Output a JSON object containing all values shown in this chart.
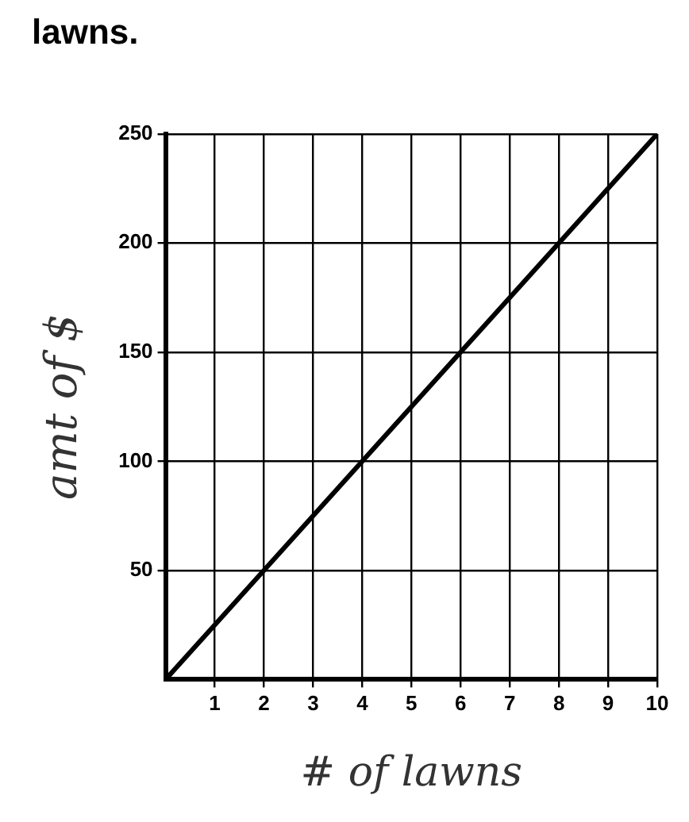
{
  "chart_data": {
    "type": "line",
    "title": "lawns.",
    "xlabel": "# of lawns",
    "ylabel": "amt of $",
    "series": [
      {
        "color": "#000000",
        "x": [
          0,
          10
        ],
        "values": [
          0,
          250
        ]
      }
    ],
    "xlim": [
      0,
      10
    ],
    "xticks": [
      1,
      2,
      3,
      4,
      5,
      6,
      7,
      8,
      9,
      10
    ],
    "ylim": [
      0,
      250
    ],
    "yticks": [
      50,
      100,
      150,
      200,
      250
    ],
    "grid": true,
    "legend": false,
    "marker": "none",
    "line_style": "solid"
  }
}
